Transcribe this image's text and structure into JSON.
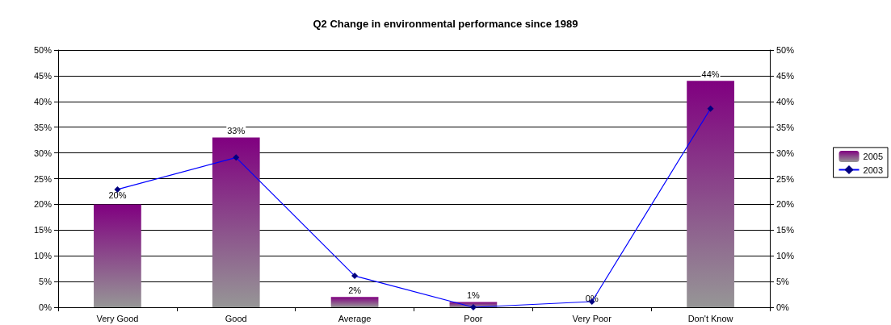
{
  "chart_data": {
    "type": "bar",
    "title": "Q2 Change in environmental performance since 1989",
    "categories": [
      "Very Good",
      "Good",
      "Average",
      "Poor",
      "Very Poor",
      "Don't Know"
    ],
    "series": [
      {
        "name": "2005",
        "color": "#800080",
        "values": [
          20,
          33,
          2,
          1,
          0,
          44
        ],
        "value_labels": [
          "20%",
          "33%",
          "2%",
          "1%",
          "0%",
          "44%"
        ]
      },
      {
        "name": "2003",
        "type": "line",
        "color": "#0000ff",
        "values": [
          22.9,
          29.1,
          6.1,
          0,
          1.1,
          38.6
        ],
        "marker": "diamond"
      }
    ],
    "ylim": [
      0,
      50
    ],
    "yticks": [
      {
        "value": 0,
        "label": "0%"
      },
      {
        "value": 5,
        "label": "5%"
      },
      {
        "value": 10,
        "label": "10%"
      },
      {
        "value": 15,
        "label": "15%"
      },
      {
        "value": 20,
        "label": "20%"
      },
      {
        "value": 25,
        "label": "25%"
      },
      {
        "value": 30,
        "label": "30%"
      },
      {
        "value": 35,
        "label": "35%"
      },
      {
        "value": 40,
        "label": "40%"
      },
      {
        "value": 45,
        "label": "45%"
      },
      {
        "value": 50,
        "label": "50%"
      }
    ],
    "y2lim": [
      0,
      50
    ],
    "y2ticks": [
      {
        "value": 0,
        "label": "0%"
      },
      {
        "value": 5,
        "label": "5%"
      },
      {
        "value": 10,
        "label": "10%"
      },
      {
        "value": 15,
        "label": "15%"
      },
      {
        "value": 20,
        "label": "20%"
      },
      {
        "value": 25,
        "label": "25%"
      },
      {
        "value": 30,
        "label": "30%"
      },
      {
        "value": 35,
        "label": "35%"
      },
      {
        "value": 40,
        "label": "40%"
      },
      {
        "value": 45,
        "label": "45%"
      },
      {
        "value": 50,
        "label": "50%"
      }
    ],
    "grid": "y",
    "legend": "right"
  }
}
